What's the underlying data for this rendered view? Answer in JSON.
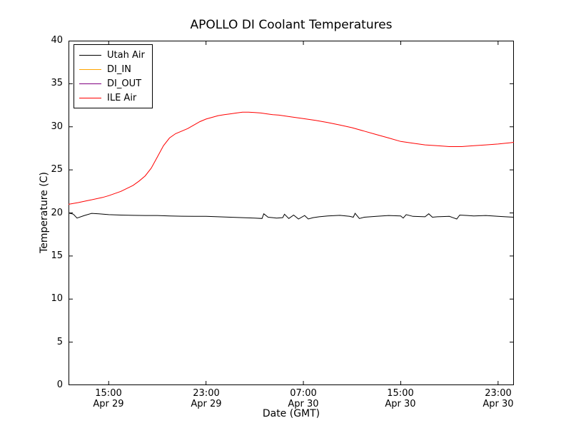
{
  "chart_data": {
    "type": "line",
    "title": "APOLLO DI Coolant Temperatures",
    "xlabel": "Date (GMT)",
    "ylabel": "Temperature (C)",
    "ylim": [
      0,
      40
    ],
    "xlim": [
      11.7,
      48.3
    ],
    "x_unit": "hours since Apr 29 00:00 GMT",
    "grid": false,
    "legend_position": "upper left",
    "yticks": [
      0,
      5,
      10,
      15,
      20,
      25,
      30,
      35,
      40
    ],
    "xticks": [
      {
        "x": 15,
        "label_time": "15:00",
        "label_date": "Apr 29"
      },
      {
        "x": 23,
        "label_time": "23:00",
        "label_date": "Apr 29"
      },
      {
        "x": 31,
        "label_time": "07:00",
        "label_date": "Apr 30"
      },
      {
        "x": 39,
        "label_time": "15:00",
        "label_date": "Apr 30"
      },
      {
        "x": 47,
        "label_time": "23:00",
        "label_date": "Apr 30"
      }
    ],
    "series": [
      {
        "name": "Utah Air",
        "color": "#000000",
        "points": [
          [
            11.7,
            20.0
          ],
          [
            12.1,
            19.85
          ],
          [
            12.4,
            19.4
          ],
          [
            13.0,
            19.7
          ],
          [
            13.6,
            19.95
          ],
          [
            14.2,
            19.9
          ],
          [
            15.0,
            19.8
          ],
          [
            16,
            19.75
          ],
          [
            17,
            19.72
          ],
          [
            18,
            19.7
          ],
          [
            19,
            19.7
          ],
          [
            20,
            19.65
          ],
          [
            21,
            19.62
          ],
          [
            22,
            19.6
          ],
          [
            23,
            19.6
          ],
          [
            24,
            19.55
          ],
          [
            25,
            19.5
          ],
          [
            26,
            19.45
          ],
          [
            27,
            19.4
          ],
          [
            27.6,
            19.35
          ],
          [
            27.75,
            19.9
          ],
          [
            28.1,
            19.5
          ],
          [
            28.8,
            19.4
          ],
          [
            29.3,
            19.45
          ],
          [
            29.45,
            19.85
          ],
          [
            29.8,
            19.35
          ],
          [
            30.2,
            19.75
          ],
          [
            30.6,
            19.3
          ],
          [
            31.1,
            19.7
          ],
          [
            31.4,
            19.3
          ],
          [
            31.8,
            19.45
          ],
          [
            32.3,
            19.55
          ],
          [
            33,
            19.65
          ],
          [
            34,
            19.72
          ],
          [
            34.8,
            19.6
          ],
          [
            35.1,
            19.5
          ],
          [
            35.25,
            19.95
          ],
          [
            35.6,
            19.35
          ],
          [
            36,
            19.5
          ],
          [
            37,
            19.6
          ],
          [
            38,
            19.7
          ],
          [
            39,
            19.65
          ],
          [
            39.2,
            19.4
          ],
          [
            39.45,
            19.8
          ],
          [
            40,
            19.6
          ],
          [
            41,
            19.55
          ],
          [
            41.3,
            19.9
          ],
          [
            41.6,
            19.5
          ],
          [
            42,
            19.55
          ],
          [
            43,
            19.6
          ],
          [
            43.6,
            19.3
          ],
          [
            43.85,
            19.75
          ],
          [
            44.5,
            19.7
          ],
          [
            45,
            19.65
          ],
          [
            46,
            19.7
          ],
          [
            47,
            19.6
          ],
          [
            47.6,
            19.55
          ],
          [
            48.3,
            19.5
          ]
        ]
      },
      {
        "name": "DI_IN",
        "color": "#ffa500",
        "points": []
      },
      {
        "name": "DI_OUT",
        "color": "#800080",
        "points": []
      },
      {
        "name": "ILE Air",
        "color": "#ff0000",
        "points": [
          [
            11.7,
            21.0
          ],
          [
            12.5,
            21.2
          ],
          [
            13.5,
            21.5
          ],
          [
            14.5,
            21.8
          ],
          [
            15.0,
            22.0
          ],
          [
            16.0,
            22.5
          ],
          [
            17.0,
            23.2
          ],
          [
            17.5,
            23.7
          ],
          [
            18.0,
            24.3
          ],
          [
            18.5,
            25.2
          ],
          [
            19.0,
            26.5
          ],
          [
            19.5,
            27.8
          ],
          [
            20.0,
            28.7
          ],
          [
            20.5,
            29.2
          ],
          [
            21.0,
            29.5
          ],
          [
            21.5,
            29.8
          ],
          [
            22.0,
            30.2
          ],
          [
            22.5,
            30.6
          ],
          [
            23.0,
            30.9
          ],
          [
            23.5,
            31.1
          ],
          [
            24.0,
            31.3
          ],
          [
            24.5,
            31.4
          ],
          [
            25.0,
            31.5
          ],
          [
            25.5,
            31.6
          ],
          [
            26.0,
            31.7
          ],
          [
            26.5,
            31.7
          ],
          [
            27.0,
            31.65
          ],
          [
            27.5,
            31.6
          ],
          [
            28.0,
            31.5
          ],
          [
            28.5,
            31.4
          ],
          [
            29.0,
            31.35
          ],
          [
            30.0,
            31.15
          ],
          [
            31.0,
            30.95
          ],
          [
            32.0,
            30.75
          ],
          [
            33.0,
            30.5
          ],
          [
            34.0,
            30.2
          ],
          [
            35.0,
            29.9
          ],
          [
            36.0,
            29.5
          ],
          [
            37.0,
            29.1
          ],
          [
            38.0,
            28.7
          ],
          [
            39.0,
            28.3
          ],
          [
            40.0,
            28.1
          ],
          [
            41.0,
            27.9
          ],
          [
            42.0,
            27.8
          ],
          [
            43.0,
            27.7
          ],
          [
            44.0,
            27.7
          ],
          [
            45.0,
            27.8
          ],
          [
            46.0,
            27.9
          ],
          [
            47.0,
            28.0
          ],
          [
            48.0,
            28.15
          ],
          [
            48.3,
            28.2
          ]
        ]
      }
    ]
  }
}
